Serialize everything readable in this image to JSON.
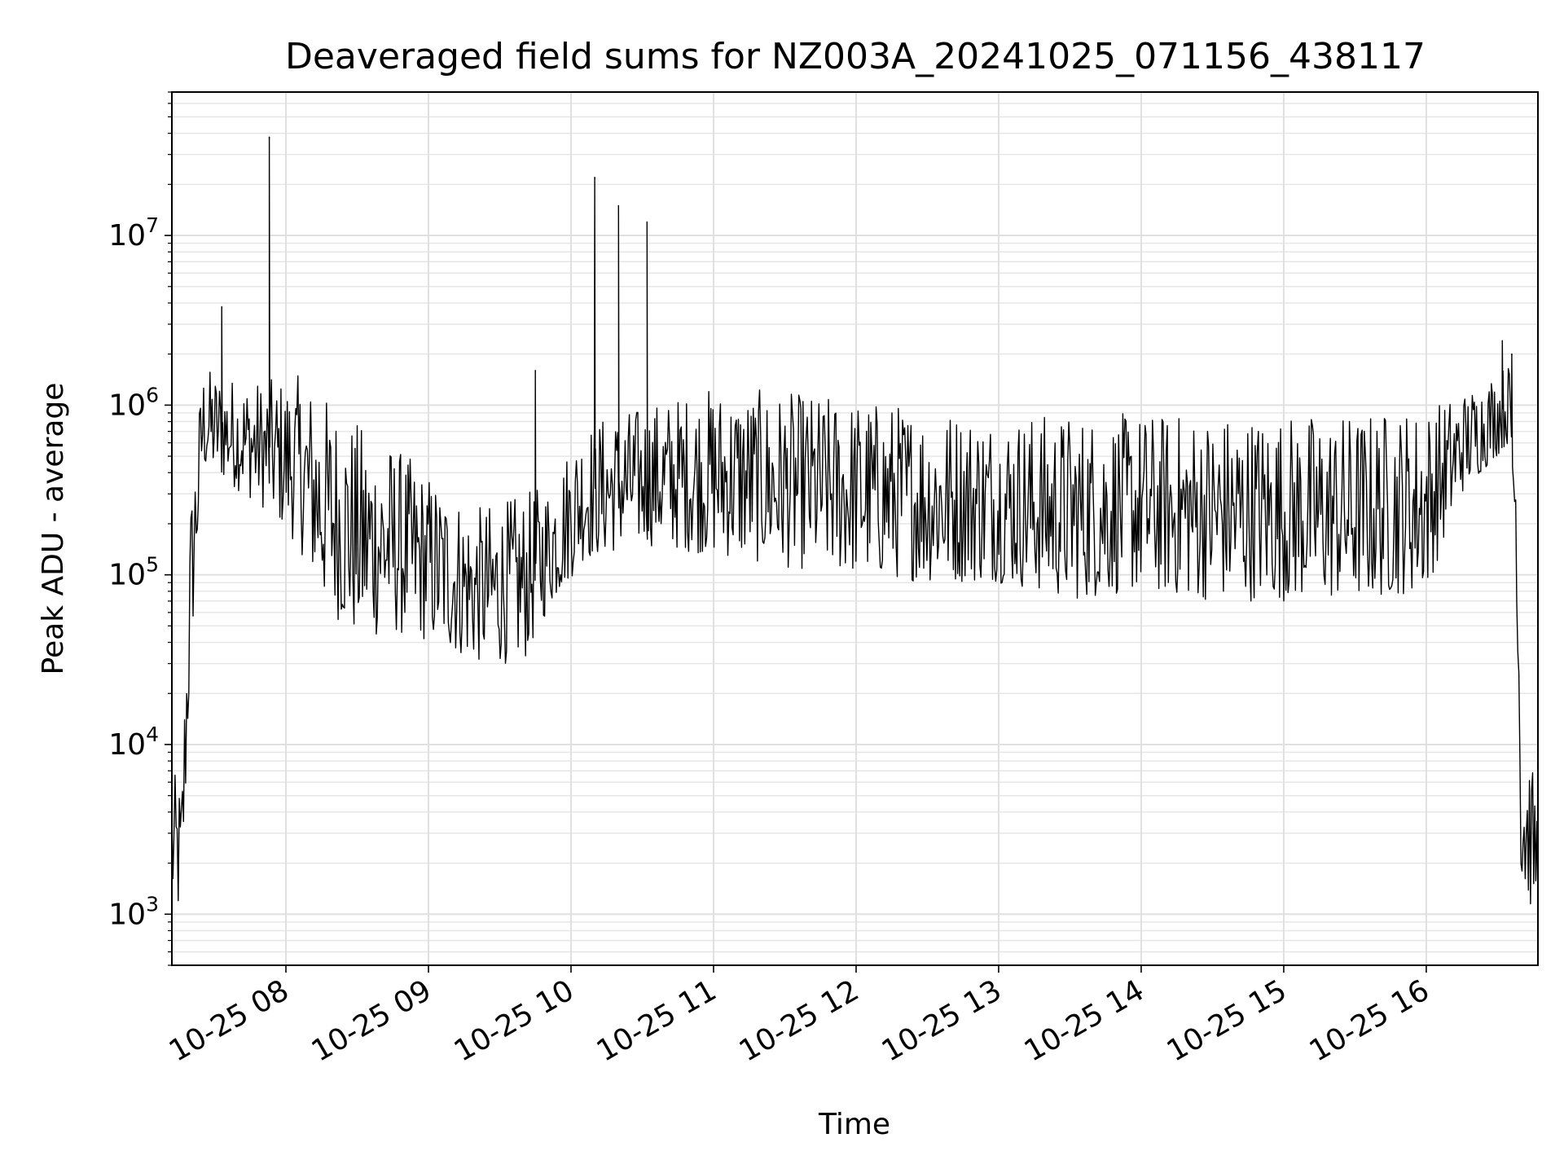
{
  "chart_data": {
    "type": "line",
    "title": "Deaveraged field sums for NZ003A_20241025_071156_438117",
    "xlabel": "Time",
    "ylabel": "Peak ADU - average",
    "yscale": "log",
    "ylim": [
      500,
      70000000
    ],
    "xlim": [
      "2024-10-25T07:12",
      "2024-10-25T16:47"
    ],
    "grid": true,
    "legend": "none",
    "line_color": "#000000",
    "x_ticks": [
      {
        "t": "2024-10-25T08:00",
        "label": "10-25 08"
      },
      {
        "t": "2024-10-25T09:00",
        "label": "10-25 09"
      },
      {
        "t": "2024-10-25T10:00",
        "label": "10-25 10"
      },
      {
        "t": "2024-10-25T11:00",
        "label": "10-25 11"
      },
      {
        "t": "2024-10-25T12:00",
        "label": "10-25 12"
      },
      {
        "t": "2024-10-25T13:00",
        "label": "10-25 13"
      },
      {
        "t": "2024-10-25T14:00",
        "label": "10-25 14"
      },
      {
        "t": "2024-10-25T15:00",
        "label": "10-25 15"
      },
      {
        "t": "2024-10-25T16:00",
        "label": "10-25 16"
      }
    ],
    "y_ticks": [
      {
        "value": 1000,
        "base": "10",
        "exp": "3"
      },
      {
        "value": 10000,
        "base": "10",
        "exp": "4"
      },
      {
        "value": 100000,
        "base": "10",
        "exp": "5"
      },
      {
        "value": 1000000,
        "base": "10",
        "exp": "6"
      },
      {
        "value": 10000000,
        "base": "10",
        "exp": "7"
      }
    ],
    "series": [
      {
        "envelope": [
          {
            "t": "2024-10-25T07:12",
            "low": 1000,
            "high": 7000
          },
          {
            "t": "2024-10-25T07:16",
            "low": 900,
            "high": 6000
          },
          {
            "t": "2024-10-25T07:20",
            "low": 30000,
            "high": 300000
          },
          {
            "t": "2024-10-25T07:25",
            "low": 400000,
            "high": 1700000
          },
          {
            "t": "2024-10-25T07:35",
            "low": 350000,
            "high": 1500000
          },
          {
            "t": "2024-10-25T07:50",
            "low": 250000,
            "high": 1400000
          },
          {
            "t": "2024-10-25T08:05",
            "low": 150000,
            "high": 1500000
          },
          {
            "t": "2024-10-25T08:15",
            "low": 70000,
            "high": 1200000
          },
          {
            "t": "2024-10-25T08:30",
            "low": 40000,
            "high": 800000
          },
          {
            "t": "2024-10-25T08:45",
            "low": 45000,
            "high": 600000
          },
          {
            "t": "2024-10-25T09:00",
            "low": 40000,
            "high": 400000
          },
          {
            "t": "2024-10-25T09:20",
            "low": 30000,
            "high": 250000
          },
          {
            "t": "2024-10-25T09:40",
            "low": 30000,
            "high": 300000
          },
          {
            "t": "2024-10-25T09:50",
            "low": 60000,
            "high": 350000
          },
          {
            "t": "2024-10-25T10:05",
            "low": 120000,
            "high": 800000
          },
          {
            "t": "2024-10-25T10:30",
            "low": 150000,
            "high": 1000000
          },
          {
            "t": "2024-10-25T11:00",
            "low": 130000,
            "high": 1300000
          },
          {
            "t": "2024-10-25T11:30",
            "low": 110000,
            "high": 1200000
          },
          {
            "t": "2024-10-25T12:00",
            "low": 100000,
            "high": 1100000
          },
          {
            "t": "2024-10-25T12:30",
            "low": 90000,
            "high": 1000000
          },
          {
            "t": "2024-10-25T13:00",
            "low": 90000,
            "high": 900000
          },
          {
            "t": "2024-10-25T13:30",
            "low": 70000,
            "high": 900000
          },
          {
            "t": "2024-10-25T14:00",
            "low": 80000,
            "high": 900000
          },
          {
            "t": "2024-10-25T14:30",
            "low": 70000,
            "high": 900000
          },
          {
            "t": "2024-10-25T15:00",
            "low": 70000,
            "high": 900000
          },
          {
            "t": "2024-10-25T15:30",
            "low": 70000,
            "high": 900000
          },
          {
            "t": "2024-10-25T16:00",
            "low": 80000,
            "high": 1000000
          },
          {
            "t": "2024-10-25T16:15",
            "low": 300000,
            "high": 1200000
          },
          {
            "t": "2024-10-25T16:35",
            "low": 600000,
            "high": 1800000
          },
          {
            "t": "2024-10-25T16:38",
            "low": 80000,
            "high": 600000
          },
          {
            "t": "2024-10-25T16:40",
            "low": 1200,
            "high": 15000
          },
          {
            "t": "2024-10-25T16:47",
            "low": 1000,
            "high": 5000
          }
        ],
        "spikes": [
          {
            "t": "2024-10-25T07:33",
            "value": 3800000
          },
          {
            "t": "2024-10-25T07:53",
            "value": 38000000
          },
          {
            "t": "2024-10-25T09:45",
            "value": 1600000
          },
          {
            "t": "2024-10-25T10:10",
            "value": 22000000
          },
          {
            "t": "2024-10-25T10:20",
            "value": 15000000
          },
          {
            "t": "2024-10-25T10:32",
            "value": 12000000
          },
          {
            "t": "2024-10-25T16:32",
            "value": 2400000
          },
          {
            "t": "2024-10-25T16:36",
            "value": 2000000
          }
        ]
      }
    ]
  }
}
